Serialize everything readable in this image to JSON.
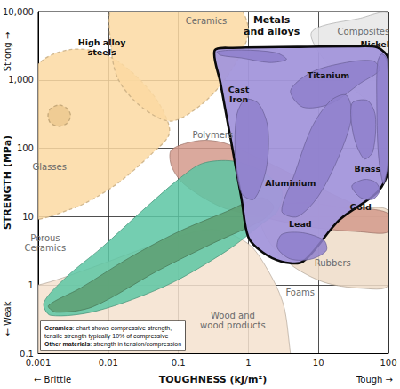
{
  "chart_data": {
    "type": "region",
    "x_label": "TOUGHNESS (kJ/m²)",
    "y_label": "STRENGTH (MPa)",
    "axis_ends": {
      "y_high": "Strong →",
      "y_low": "← Weak",
      "x_low": "← Brittle",
      "x_high": "Tough →"
    },
    "log": true,
    "grid": true,
    "xlim": [
      0.001,
      100
    ],
    "ylim": [
      0.1,
      10000
    ],
    "xticks": [
      0.001,
      0.01,
      0.1,
      1,
      10,
      100
    ],
    "yticks": [
      0.1,
      1,
      10,
      100,
      {
        "value": 1000,
        "label": "1,000"
      },
      {
        "value": 10000,
        "label": "10,000"
      }
    ],
    "note": [
      {
        "bold": "Ceramics",
        "text": ": chart shows compressive strength,"
      },
      {
        "text": "tensile strength typically 10% of compressive"
      },
      {
        "bold": "Other materials",
        "text": ": strength in tension/compression"
      }
    ],
    "series": [
      {
        "name": "Foams",
        "color": "#f4e2cf",
        "line_style": "solid",
        "label_at": [
          5.5,
          0.79
        ],
        "points": [
          [
            0.0005,
            1
          ],
          [
            0.001,
            1
          ],
          [
            0.005,
            1.7
          ],
          [
            0.05,
            4
          ],
          [
            0.3,
            6.5
          ],
          [
            1,
            4
          ],
          [
            2,
            1.5
          ],
          [
            3.2,
            0.5
          ],
          [
            4,
            0.1
          ],
          [
            4.5,
            0.05
          ],
          [
            0.0005,
            0.05
          ]
        ]
      },
      {
        "name": "Rubbers",
        "color": "#efdcc8",
        "line_style": "solid",
        "label_at": [
          16,
          2.1
        ],
        "points": [
          [
            1.5,
            12
          ],
          [
            6,
            16
          ],
          [
            30,
            13
          ],
          [
            100,
            12
          ],
          [
            100,
            1
          ],
          [
            40,
            0.9
          ],
          [
            12,
            1.1
          ],
          [
            4,
            2
          ],
          [
            1.8,
            5
          ]
        ]
      },
      {
        "name": "Polymers",
        "color": "#d39a8c",
        "line_style": "solid",
        "label_at": [
          0.31,
          155
        ],
        "points": [
          [
            0.08,
            95
          ],
          [
            0.2,
            130
          ],
          [
            0.45,
            120
          ],
          [
            1.5,
            70
          ],
          [
            8,
            30
          ],
          [
            40,
            14
          ],
          [
            100,
            11
          ],
          [
            100,
            6
          ],
          [
            40,
            6
          ],
          [
            8,
            7
          ],
          [
            1.5,
            10
          ],
          [
            0.4,
            14
          ],
          [
            0.12,
            30
          ],
          [
            0.08,
            55
          ]
        ]
      },
      {
        "name": "Wood and\nwood products",
        "color": "#5cc6a3",
        "line_style": "solid",
        "label_at": [
          0.6,
          0.3
        ],
        "points": [
          [
            0.0012,
            0.55
          ],
          [
            0.0025,
            1.3
          ],
          [
            0.008,
            3.5
          ],
          [
            0.03,
            12
          ],
          [
            0.1,
            35
          ],
          [
            0.22,
            60
          ],
          [
            0.6,
            65
          ],
          [
            1.6,
            45
          ],
          [
            3,
            24
          ],
          [
            2.6,
            12
          ],
          [
            1.6,
            8
          ],
          [
            0.5,
            3.2
          ],
          [
            0.07,
            1.0
          ],
          [
            0.007,
            0.42
          ],
          [
            0.0015,
            0.36
          ]
        ]
      },
      {
        "color": "#5e9f72",
        "line_style": "solid",
        "points": [
          [
            0.0014,
            0.5
          ],
          [
            0.004,
            0.9
          ],
          [
            0.02,
            2.5
          ],
          [
            0.1,
            6
          ],
          [
            0.5,
            12
          ],
          [
            1.5,
            19
          ],
          [
            2.3,
            14
          ],
          [
            1.6,
            9
          ],
          [
            0.3,
            4
          ],
          [
            0.05,
            1.6
          ],
          [
            0.006,
            0.48
          ],
          [
            0.0018,
            0.4
          ]
        ]
      },
      {
        "name": "Composites",
        "color": "#e6e6e6",
        "line_style": "solid",
        "label_at": [
          44,
          5170
        ],
        "points": [
          [
            8,
            5000
          ],
          [
            40,
            8000
          ],
          [
            100,
            9000
          ],
          [
            100,
            300
          ],
          [
            50,
            500
          ],
          [
            15,
            1500
          ]
        ]
      },
      {
        "name": "Porous\nCeramics",
        "color": "#fbd9a2",
        "line_style": "dashed",
        "label_at": [
          0.00126,
          4.1
        ],
        "points": [
          [
            0.0006,
            10
          ],
          [
            0.0006,
            800
          ],
          [
            0.0012,
            2000
          ],
          [
            0.003,
            2800
          ],
          [
            0.008,
            2500
          ],
          [
            0.02,
            1400
          ],
          [
            0.05,
            500
          ],
          [
            0.075,
            170
          ],
          [
            0.04,
            80
          ],
          [
            0.012,
            28
          ],
          [
            0.003,
            13
          ]
        ]
      },
      {
        "name": "Glasses",
        "color": "#ecc98f",
        "line_style": "dashed",
        "label_at": [
          0.00145,
          54
        ],
        "points": [
          [
            0.002,
            430
          ],
          [
            0.0026,
            380
          ],
          [
            0.0029,
            300
          ],
          [
            0.0026,
            235
          ],
          [
            0.002,
            210
          ],
          [
            0.0015,
            235
          ],
          [
            0.00138,
            300
          ],
          [
            0.0015,
            380
          ]
        ]
      },
      {
        "name": "Ceramics",
        "color": "#fbd9a2",
        "line_style": "dashed",
        "label_at": [
          0.25,
          7200
        ],
        "points": [
          [
            0.011,
            3000
          ],
          [
            0.012,
            12000
          ],
          [
            0.15,
            14000
          ],
          [
            0.7,
            12000
          ],
          [
            1.0,
            5000
          ],
          [
            0.6,
            1500
          ],
          [
            0.25,
            500
          ],
          [
            0.08,
            250
          ],
          [
            0.03,
            400
          ],
          [
            0.014,
            1000
          ]
        ]
      },
      {
        "name": "Metals\nand alloys",
        "color": "#a396db",
        "line_style": "bold",
        "label_at": [
          2.15,
          6190
        ],
        "points": [
          [
            0.33,
            2700
          ],
          [
            0.6,
            2950
          ],
          [
            5,
            3050
          ],
          [
            30,
            3100
          ],
          [
            70,
            3000
          ],
          [
            100,
            2000
          ],
          [
            100,
            50
          ],
          [
            70,
            23
          ],
          [
            20,
            9
          ],
          [
            6,
            2.2
          ],
          [
            3,
            2.2
          ],
          [
            1.6,
            3
          ],
          [
            1.0,
            5
          ],
          [
            0.8,
            18
          ],
          [
            0.55,
            150
          ],
          [
            0.4,
            900
          ]
        ]
      },
      {
        "name": "High alloy\nsteels",
        "color": "#8f80cc",
        "line_style": "solid",
        "label_at": [
          0.0081,
          3010
        ],
        "points": [
          [
            0.36,
            2600
          ],
          [
            0.8,
            2750
          ],
          [
            2.5,
            2500
          ],
          [
            3.5,
            2000
          ],
          [
            2,
            1800
          ],
          [
            0.8,
            2100
          ],
          [
            0.4,
            2300
          ]
        ]
      },
      {
        "name": "Cast\nIron",
        "color": "#8f80cc",
        "line_style": "solid",
        "label_at": [
          0.73,
          614
        ],
        "points": [
          [
            0.9,
            520
          ],
          [
            1.4,
            450
          ],
          [
            1.9,
            200
          ],
          [
            1.8,
            50
          ],
          [
            1.2,
            18
          ],
          [
            0.8,
            22
          ],
          [
            0.65,
            80
          ],
          [
            0.68,
            300
          ]
        ]
      },
      {
        "name": "Titanium",
        "color": "#8f80cc",
        "line_style": "solid",
        "label_at": [
          13.9,
          1155
        ],
        "points": [
          [
            4,
            700
          ],
          [
            8,
            1300
          ],
          [
            25,
            1800
          ],
          [
            60,
            1900
          ],
          [
            75,
            1400
          ],
          [
            40,
            900
          ],
          [
            15,
            450
          ],
          [
            6,
            400
          ]
        ]
      },
      {
        "name": "Nickel",
        "color": "#8f80cc",
        "line_style": "solid",
        "label_at": [
          64,
          3300
        ],
        "points": [
          [
            80,
            2400
          ],
          [
            95,
            2000
          ],
          [
            100,
            500
          ],
          [
            98,
            60
          ],
          [
            85,
            30
          ],
          [
            72,
            80
          ],
          [
            68,
            600
          ],
          [
            70,
            1800
          ]
        ]
      },
      {
        "name": "Aluminium",
        "color": "#8f80cc",
        "line_style": "solid",
        "label_at": [
          4.0,
          31.6
        ],
        "points": [
          [
            3,
            12
          ],
          [
            4.5,
            40
          ],
          [
            8,
            200
          ],
          [
            15,
            500
          ],
          [
            25,
            600
          ],
          [
            30,
            300
          ],
          [
            20,
            80
          ],
          [
            10,
            20
          ],
          [
            5,
            10
          ]
        ]
      },
      {
        "name": "Brass",
        "color": "#8f80cc",
        "line_style": "solid",
        "label_at": [
          50,
          50
        ],
        "points": [
          [
            30,
            450
          ],
          [
            50,
            500
          ],
          [
            65,
            300
          ],
          [
            60,
            90
          ],
          [
            45,
            70
          ],
          [
            32,
            150
          ]
        ]
      },
      {
        "name": "Gold",
        "color": "#8f80cc",
        "line_style": "solid",
        "label_at": [
          40,
          13.9
        ],
        "points": [
          [
            30,
            28
          ],
          [
            45,
            35
          ],
          [
            65,
            32
          ],
          [
            75,
            24
          ],
          [
            60,
            18
          ],
          [
            40,
            19
          ]
        ]
      },
      {
        "name": "Lead",
        "color": "#8f80cc",
        "line_style": "solid",
        "label_at": [
          5.5,
          7.8
        ],
        "points": [
          [
            3,
            5.5
          ],
          [
            6,
            5.8
          ],
          [
            12,
            4.5
          ],
          [
            13,
            3.2
          ],
          [
            8,
            2.4
          ],
          [
            4,
            2.4
          ],
          [
            2.6,
            3.5
          ]
        ]
      }
    ]
  }
}
